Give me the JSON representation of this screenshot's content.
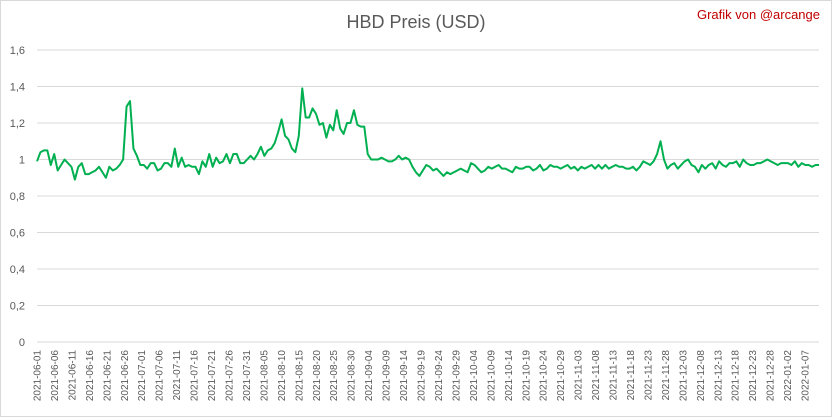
{
  "title": "HBD Preis (USD)",
  "credit": "Grafik von @arcange",
  "colors": {
    "line": "#00b050",
    "grid": "#d9d9d9",
    "text": "#595959",
    "credit": "#c00000"
  },
  "chart_data": {
    "type": "line",
    "title": "HBD Preis (USD)",
    "xlabel": "",
    "ylabel": "",
    "ylim": [
      0,
      1.6
    ],
    "yticks": [
      "0",
      "0,2",
      "0,4",
      "0,6",
      "0,8",
      "1",
      "1,2",
      "1,4",
      "1,6"
    ],
    "grid": true,
    "legend": "none",
    "x_start": "2021-06-01",
    "x_end": "2022-01-11",
    "x_tick_labels": [
      "2021-06-01",
      "2021-06-06",
      "2021-06-11",
      "2021-06-16",
      "2021-06-21",
      "2021-06-26",
      "2021-07-01",
      "2021-07-06",
      "2021-07-11",
      "2021-07-16",
      "2021-07-21",
      "2021-07-26",
      "2021-07-31",
      "2021-08-05",
      "2021-08-10",
      "2021-08-15",
      "2021-08-20",
      "2021-08-25",
      "2021-08-30",
      "2021-09-04",
      "2021-09-09",
      "2021-09-14",
      "2021-09-19",
      "2021-09-24",
      "2021-09-29",
      "2021-10-04",
      "2021-10-09",
      "2021-10-14",
      "2021-10-19",
      "2021-10-24",
      "2021-10-29",
      "2021-11-03",
      "2021-11-08",
      "2021-11-13",
      "2021-11-18",
      "2021-11-23",
      "2021-11-28",
      "2021-12-03",
      "2021-12-08",
      "2021-12-13",
      "2021-12-18",
      "2021-12-23",
      "2021-12-28",
      "2022-01-02",
      "2022-01-07"
    ],
    "series": [
      {
        "values": [
          0.99,
          1.04,
          1.05,
          1.05,
          0.97,
          1.03,
          0.94,
          0.97,
          1.0,
          0.98,
          0.96,
          0.89,
          0.96,
          0.98,
          0.92,
          0.92,
          0.93,
          0.94,
          0.96,
          0.93,
          0.9,
          0.96,
          0.94,
          0.95,
          0.97,
          1.0,
          1.29,
          1.32,
          1.06,
          1.02,
          0.97,
          0.97,
          0.95,
          0.98,
          0.98,
          0.94,
          0.95,
          0.98,
          0.98,
          0.96,
          1.06,
          0.96,
          1.01,
          0.96,
          0.97,
          0.96,
          0.96,
          0.92,
          0.99,
          0.96,
          1.03,
          0.96,
          1.01,
          0.98,
          0.99,
          1.03,
          0.98,
          1.03,
          1.03,
          0.98,
          0.98,
          1.0,
          1.02,
          1.0,
          1.03,
          1.07,
          1.02,
          1.05,
          1.06,
          1.09,
          1.15,
          1.22,
          1.13,
          1.11,
          1.06,
          1.04,
          1.13,
          1.39,
          1.23,
          1.23,
          1.28,
          1.25,
          1.19,
          1.2,
          1.12,
          1.19,
          1.16,
          1.27,
          1.17,
          1.14,
          1.2,
          1.2,
          1.27,
          1.19,
          1.18,
          1.18,
          1.03,
          1.0,
          1.0,
          1.0,
          1.01,
          1.0,
          0.99,
          0.99,
          1.0,
          1.02,
          1.0,
          1.01,
          1.0,
          0.96,
          0.93,
          0.91,
          0.94,
          0.97,
          0.96,
          0.94,
          0.95,
          0.93,
          0.91,
          0.93,
          0.92,
          0.93,
          0.94,
          0.95,
          0.94,
          0.93,
          0.98,
          0.97,
          0.95,
          0.93,
          0.94,
          0.96,
          0.95,
          0.96,
          0.97,
          0.95,
          0.95,
          0.94,
          0.93,
          0.96,
          0.95,
          0.95,
          0.96,
          0.96,
          0.94,
          0.95,
          0.97,
          0.94,
          0.95,
          0.97,
          0.96,
          0.96,
          0.95,
          0.96,
          0.97,
          0.95,
          0.96,
          0.94,
          0.96,
          0.95,
          0.96,
          0.97,
          0.95,
          0.97,
          0.95,
          0.97,
          0.95,
          0.96,
          0.97,
          0.96,
          0.96,
          0.95,
          0.95,
          0.96,
          0.94,
          0.96,
          0.99,
          0.98,
          0.97,
          0.99,
          1.03,
          1.1,
          1.0,
          0.95,
          0.97,
          0.98,
          0.95,
          0.97,
          0.99,
          1.0,
          0.97,
          0.96,
          0.93,
          0.97,
          0.95,
          0.97,
          0.98,
          0.95,
          0.99,
          0.97,
          0.96,
          0.98,
          0.98,
          0.99,
          0.96,
          1.0,
          0.98,
          0.97,
          0.97,
          0.98,
          0.98,
          0.99,
          1.0,
          0.99,
          0.98,
          0.97,
          0.98,
          0.98,
          0.98,
          0.97,
          0.99,
          0.96,
          0.98,
          0.97,
          0.97,
          0.96,
          0.97,
          0.97
        ]
      }
    ]
  }
}
